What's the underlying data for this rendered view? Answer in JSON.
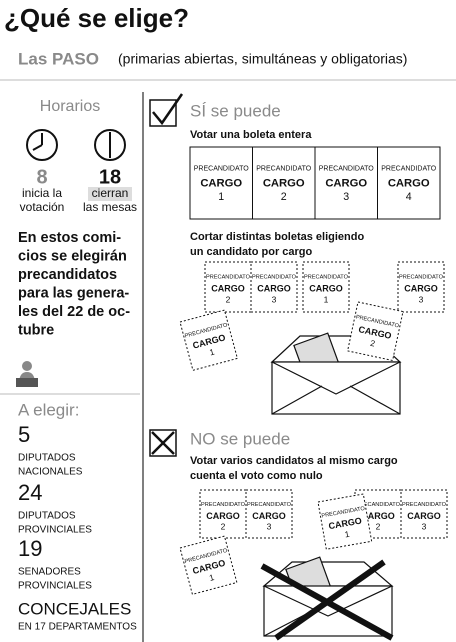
{
  "header": {
    "title": "¿Qué se elige?",
    "subtitle": "Las PASO",
    "subtitle_note": "(primarias abiertas, simultáneas y obligatorias)"
  },
  "schedule": {
    "title": "Horarios",
    "opening": {
      "time": "8",
      "lines": [
        "inicia la",
        "votación"
      ]
    },
    "closing": {
      "time": "18",
      "lines": [
        "cierran",
        "las mesas"
      ]
    }
  },
  "intro": {
    "lines": [
      "En estos comi-",
      "cios se elegirán",
      "precandidatos",
      "para las genera-",
      "les del 22 de oc-",
      "tubre"
    ]
  },
  "offices": {
    "title": "A elegir:",
    "items": [
      {
        "count": "5",
        "lines": [
          "DIPUTADOS",
          "NACIONALES"
        ]
      },
      {
        "count": "24",
        "lines": [
          "DIPUTADOS",
          "PROVINCIALES"
        ]
      },
      {
        "count": "19",
        "lines": [
          "SENADORES",
          "PROVINCIALES"
        ]
      }
    ],
    "councils": {
      "label": "CONCEJALES",
      "detail": "EN 17 DEPARTAMENTOS"
    }
  },
  "allowed": {
    "title": "SÍ se puede",
    "whole": {
      "caption": "Votar una boleta entera",
      "ballot": [
        {
          "label": "PRECANDIDATO",
          "office": "CARGO",
          "number": "1"
        },
        {
          "label": "PRECANDIDATO",
          "office": "CARGO",
          "number": "2"
        },
        {
          "label": "PRECANDIDATO",
          "office": "CARGO",
          "number": "3"
        },
        {
          "label": "PRECANDIDATO",
          "office": "CARGO",
          "number": "4"
        }
      ]
    },
    "cut": {
      "caption_lines": [
        "Cortar distintas boletas eligiendo",
        "un candidato por cargo"
      ],
      "pieces": [
        [
          {
            "label": "PRECANDIDATO",
            "office": "CARGO",
            "number": "2"
          },
          {
            "label": "PRECANDIDATO",
            "office": "CARGO",
            "number": "3"
          }
        ],
        [
          {
            "label": "PRECANDIDATO",
            "office": "CARGO",
            "number": "1"
          }
        ],
        [
          {
            "label": "PRECANDIDATO",
            "office": "CARGO",
            "number": "3"
          }
        ],
        [
          {
            "label": "PRECANDIDATO",
            "office": "CARGO",
            "number": "2"
          }
        ],
        [
          {
            "label": "PRECANDIDATO",
            "office": "CARGO",
            "number": "1"
          }
        ]
      ]
    }
  },
  "forbidden": {
    "title": "NO se puede",
    "caption_lines": [
      "Votar varios candidatos al mismo cargo",
      "cuenta el voto como nulo"
    ],
    "pieces": [
      [
        {
          "label": "PRECANDIDATO",
          "office": "CARGO",
          "number": "2"
        },
        {
          "label": "PRECANDIDATO",
          "office": "CARGO",
          "number": "3"
        }
      ],
      [
        {
          "label": "PRECANDIDATO",
          "office": "CARGO",
          "number": "2"
        },
        {
          "label": "PRECANDIDATO",
          "office": "CARGO",
          "number": "3"
        }
      ],
      [
        {
          "label": "PRECANDIDATO",
          "office": "CARGO",
          "number": "1"
        }
      ],
      [
        {
          "label": "PRECANDIDATO",
          "office": "CARGO",
          "number": "1"
        }
      ]
    ]
  }
}
